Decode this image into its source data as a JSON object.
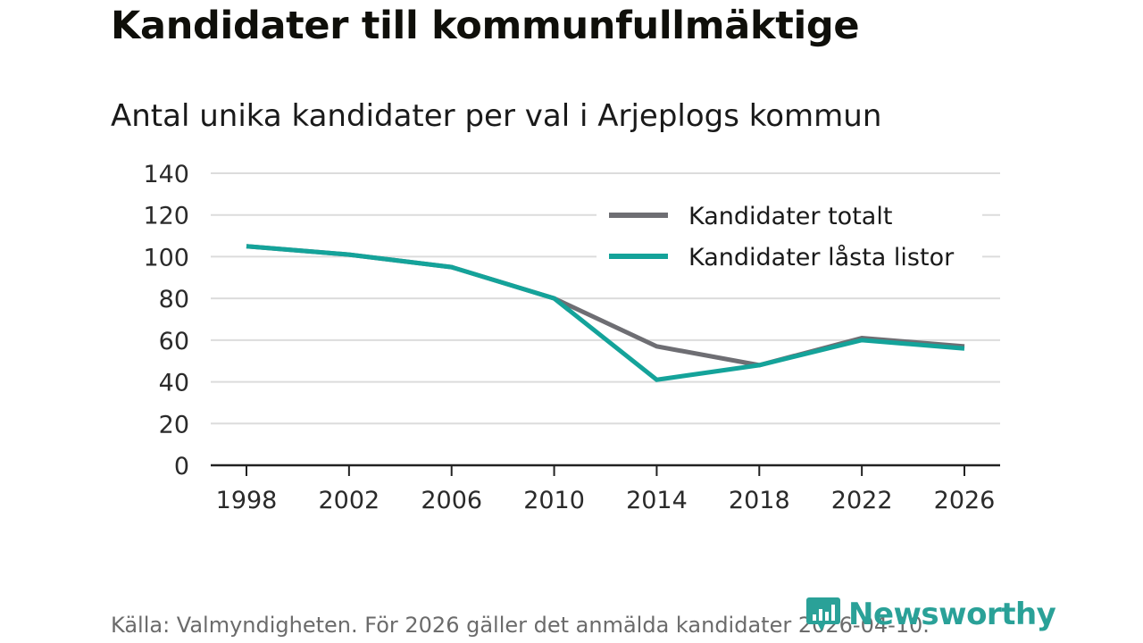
{
  "title": "Kandidater till kommunfullmäktige",
  "subtitle": "Antal unika kandidater per val i Arjeplogs kommun",
  "caption": "Källa: Valmyndigheten. För 2026 gäller det anmälda kandidater 2026-04-10.",
  "brand": {
    "name": "Newsworthy",
    "icon": "newsworthy-logo-icon",
    "color": "#2aa198"
  },
  "chart_data": {
    "type": "line",
    "title": "Kandidater till kommunfullmäktige",
    "subtitle": "Antal unika kandidater per val i Arjeplogs kommun",
    "xlabel": "",
    "ylabel": "",
    "categories": [
      "1998",
      "2002",
      "2006",
      "2010",
      "2014",
      "2018",
      "2022",
      "2026"
    ],
    "ylim": [
      0,
      140
    ],
    "yticks": [
      "0",
      "20",
      "40",
      "60",
      "80",
      "100",
      "120",
      "140"
    ],
    "grid": true,
    "legend_position": "top-right",
    "series": [
      {
        "name": "Kandidater totalt",
        "color": "#6e6e73",
        "values": [
          105,
          101,
          95,
          80,
          57,
          48,
          61,
          57
        ]
      },
      {
        "name": "Kandidater låsta listor",
        "color": "#14a39a",
        "values": [
          105,
          101,
          95,
          80,
          41,
          48,
          60,
          56
        ]
      }
    ]
  }
}
